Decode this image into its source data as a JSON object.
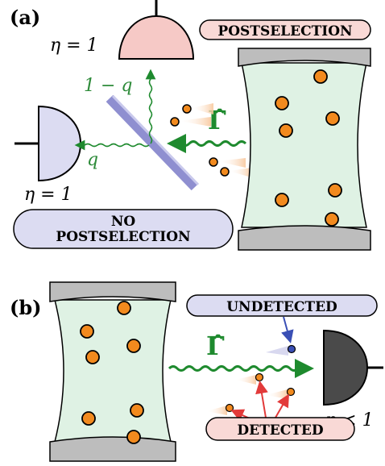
{
  "panel_a": {
    "label": "(a)",
    "eta_top": "η = 1",
    "eta_left": "η = 1",
    "one_minus_q": "1 − q",
    "q": "q",
    "gamma": "Γ̂",
    "postselection": "POSTSELECTION",
    "no_line1": "NO",
    "no_line2": "POSTSELECTION"
  },
  "panel_b": {
    "label": "(b)",
    "gamma": "Γ̂",
    "undetected": "UNDETECTED",
    "detected": "DETECTED",
    "eta": "η < 1"
  },
  "colors": {
    "cavity_fill": "#dff2e4",
    "mirror": "#bdbdbd",
    "atom": "#f28a1e",
    "photon_arrow": "#1e8a2e",
    "green_text": "#2e8b3a",
    "detector_top": "#f6c9c6",
    "detector_left": "#dcdcf2",
    "detector_dark": "#4a4a4a",
    "beamsplitter": "#8f8fd0",
    "label_pink": "#f9d9d6",
    "label_lavender": "#dcdcf2",
    "undetected_arrow": "#3a4fb5",
    "detected_arrow": "#e23a3a"
  }
}
